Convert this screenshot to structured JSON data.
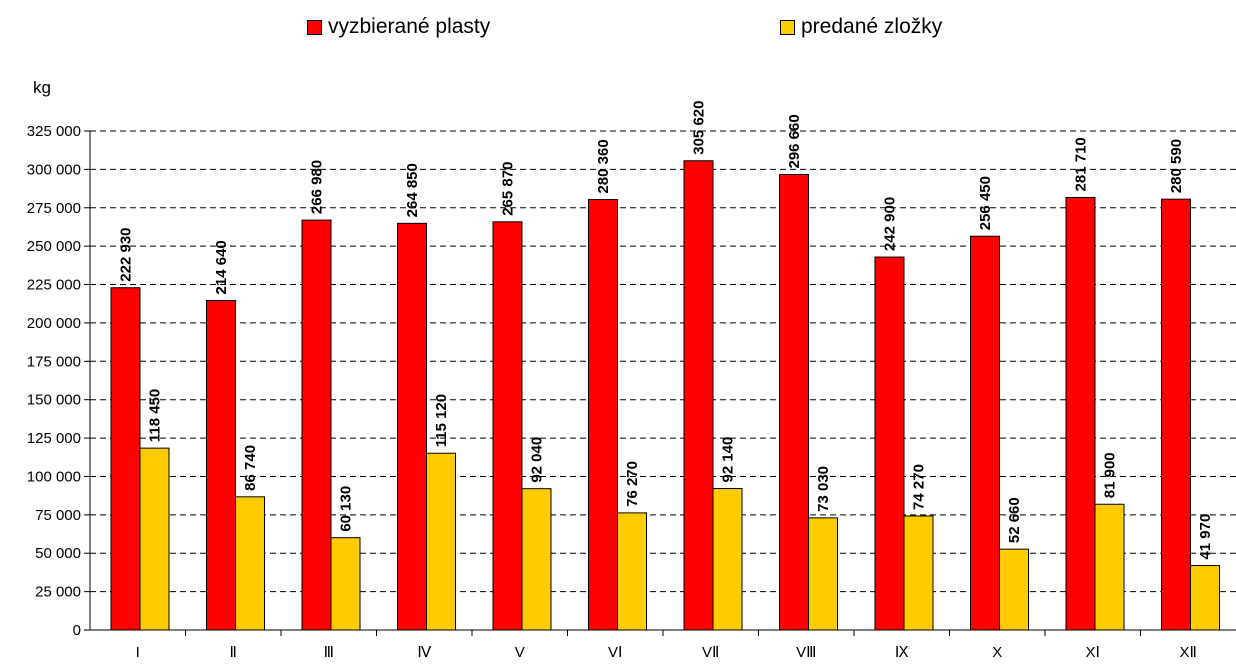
{
  "legend": {
    "series1": "vyzbierané plasty",
    "series2": "predané zložky"
  },
  "colors": {
    "series1": "#ff0000",
    "series2": "#ffcc00"
  },
  "chart_data": {
    "type": "bar",
    "ylabel": "kg",
    "categories": [
      "I",
      "II",
      "III",
      "IV",
      "V",
      "VI",
      "VII",
      "VIII",
      "IX",
      "X",
      "XI",
      "XII"
    ],
    "category_labels": [
      "I",
      "Ⅱ",
      "Ⅲ",
      "Ⅳ",
      "V",
      "VⅠ",
      "VⅡ",
      "VⅢ",
      "Ⅸ",
      "X",
      "XⅠ",
      "XⅡ"
    ],
    "series": [
      {
        "name": "vyzbierané plasty",
        "values": [
          222930,
          214640,
          266980,
          264850,
          265870,
          280360,
          305620,
          296660,
          242900,
          256450,
          281710,
          280590
        ],
        "labels": [
          "222 930",
          "214 640",
          "266 980",
          "264 850",
          "265 870",
          "280 360",
          "305 620",
          "296 660",
          "242 900",
          "256 450",
          "281 710",
          "280 590"
        ]
      },
      {
        "name": "predané zložky",
        "values": [
          118450,
          86740,
          60130,
          115120,
          92040,
          76270,
          92140,
          73030,
          74270,
          52660,
          81900,
          41970
        ],
        "labels": [
          "118 450",
          "86 740",
          "60 130",
          "115 120",
          "92 040",
          "76 270",
          "92 140",
          "73 030",
          "74 270",
          "52 660",
          "81 900",
          "41 970"
        ]
      }
    ],
    "ylim": [
      0,
      325000
    ],
    "ytick_step": 25000,
    "ytick_labels": [
      "0",
      "25 000",
      "50 000",
      "75 000",
      "100 000",
      "125 000",
      "150 000",
      "175 000",
      "200 000",
      "225 000",
      "250 000",
      "275 000",
      "300 000",
      "325 000"
    ],
    "grid": "dashed horizontal",
    "legend_position": "top"
  }
}
